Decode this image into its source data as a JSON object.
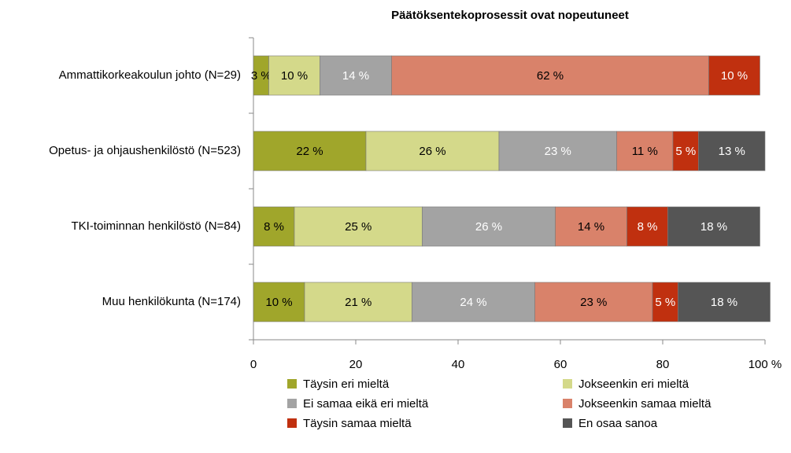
{
  "chart_data": {
    "type": "stacked-barh",
    "title": "Päätöksentekoprosessit ovat nopeutuneet",
    "categories": [
      "Ammattikorkeakoulun johto (N=29)",
      "Opetus- ja ohjaushenkilöstö (N=523)",
      "TKI-toiminnan henkilöstö (N=84)",
      "Muu henkilökunta (N=174)"
    ],
    "series": [
      {
        "name": "Täysin eri mieltä",
        "color": "#a0a62b",
        "label_color": "#000000",
        "values": [
          3,
          22,
          8,
          10
        ],
        "value_labels": [
          "3 %",
          "22 %",
          "8 %",
          "10 %"
        ]
      },
      {
        "name": "Jokseenkin eri mieltä",
        "color": "#d4d98a",
        "label_color": "#000000",
        "values": [
          10,
          26,
          25,
          21
        ],
        "value_labels": [
          "10 %",
          "26 %",
          "25 %",
          "21 %"
        ]
      },
      {
        "name": "Ei samaa eikä eri mieltä",
        "color": "#a3a3a3",
        "label_color": "#ffffff",
        "values": [
          14,
          23,
          26,
          24
        ],
        "value_labels": [
          "14 %",
          "23 %",
          "26 %",
          "24 %"
        ]
      },
      {
        "name": "Jokseenkin samaa mieltä",
        "color": "#d9826a",
        "label_color": "#000000",
        "values": [
          62,
          11,
          14,
          23
        ],
        "value_labels": [
          "62 %",
          "11 %",
          "14 %",
          "23 %"
        ]
      },
      {
        "name": "Täysin samaa mieltä",
        "color": "#c0300f",
        "label_color": "#ffffff",
        "values": [
          10,
          5,
          8,
          5
        ],
        "value_labels": [
          "10 %",
          "5 %",
          "8 %",
          "5 %"
        ]
      },
      {
        "name": "En osaa sanoa",
        "color": "#555555",
        "label_color": "#ffffff",
        "values": [
          0,
          13,
          18,
          18
        ],
        "value_labels": [
          null,
          "13 %",
          "18 %",
          "18 %"
        ]
      }
    ],
    "xlim": [
      0,
      100
    ],
    "xticks": [
      0,
      20,
      40,
      60,
      80,
      {
        "value": 100,
        "label": "100 %"
      }
    ],
    "legend": "bottom"
  }
}
